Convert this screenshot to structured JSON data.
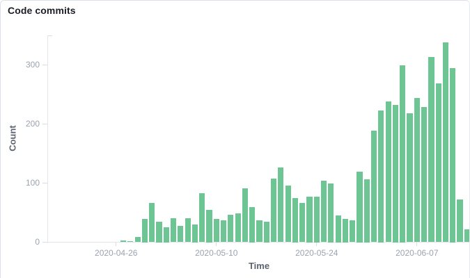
{
  "panel": {
    "title": "Code commits"
  },
  "chart_data": {
    "type": "bar",
    "title": "Code commits",
    "xlabel": "Time",
    "ylabel": "Count",
    "legend": null,
    "grid": false,
    "ylim": [
      0,
      350
    ],
    "y_ticks": [
      0,
      100,
      200,
      300
    ],
    "x_ticks": [
      {
        "index": 9,
        "label": "2020-04-26"
      },
      {
        "index": 23,
        "label": "2020-05-10"
      },
      {
        "index": 37,
        "label": "2020-05-24"
      },
      {
        "index": 51,
        "label": "2020-06-07"
      }
    ],
    "categories": [
      "2020-04-17",
      "2020-04-18",
      "2020-04-19",
      "2020-04-20",
      "2020-04-21",
      "2020-04-22",
      "2020-04-23",
      "2020-04-24",
      "2020-04-25",
      "2020-04-26",
      "2020-04-27",
      "2020-04-28",
      "2020-04-29",
      "2020-04-30",
      "2020-05-01",
      "2020-05-02",
      "2020-05-03",
      "2020-05-04",
      "2020-05-05",
      "2020-05-06",
      "2020-05-07",
      "2020-05-08",
      "2020-05-09",
      "2020-05-10",
      "2020-05-11",
      "2020-05-12",
      "2020-05-13",
      "2020-05-14",
      "2020-05-15",
      "2020-05-16",
      "2020-05-17",
      "2020-05-18",
      "2020-05-19",
      "2020-05-20",
      "2020-05-21",
      "2020-05-22",
      "2020-05-23",
      "2020-05-24",
      "2020-05-25",
      "2020-05-26",
      "2020-05-27",
      "2020-05-28",
      "2020-05-29",
      "2020-05-30",
      "2020-05-31",
      "2020-06-01",
      "2020-06-02",
      "2020-06-03",
      "2020-06-04",
      "2020-06-05",
      "2020-06-06",
      "2020-06-07",
      "2020-06-08",
      "2020-06-09",
      "2020-06-10",
      "2020-06-11",
      "2020-06-12",
      "2020-06-13",
      "2020-06-14"
    ],
    "values": [
      0,
      0,
      0,
      0,
      0,
      0,
      0,
      0,
      0,
      0,
      3,
      2,
      9,
      40,
      66,
      35,
      25,
      41,
      28,
      41,
      30,
      83,
      55,
      39,
      37,
      47,
      49,
      91,
      60,
      37,
      35,
      108,
      126,
      96,
      75,
      66,
      77,
      77,
      104,
      100,
      45,
      40,
      37,
      120,
      107,
      189,
      223,
      238,
      233,
      300,
      218,
      244,
      229,
      314,
      269,
      338,
      295,
      72,
      22
    ]
  },
  "colors": {
    "bar": "#6dc594",
    "axis_line": "#e2e5eb",
    "tick_mark": "#d9dde3",
    "tick_text": "#9ba3af",
    "axis_name_text": "#5d6470",
    "title_text": "#1b1e24"
  }
}
